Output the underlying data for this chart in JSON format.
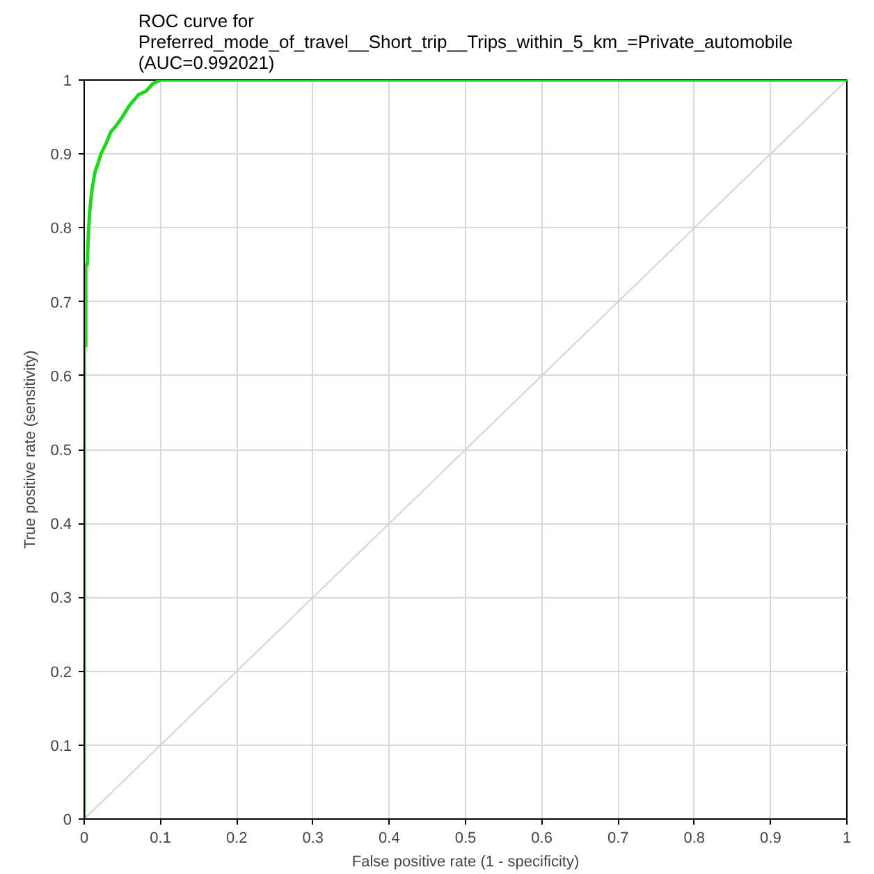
{
  "chart_data": {
    "type": "line",
    "title": "ROC curve for\nPreferred_mode_of_travel__Short_trip__Trips_within_5_km_=Private_automobile\n(AUC=0.992021)",
    "xlabel": "False positive rate (1 - specificity)",
    "ylabel": "True positive rate (sensitivity)",
    "xlim": [
      0,
      1
    ],
    "ylim": [
      0,
      1
    ],
    "xticks": [
      0,
      0.1,
      0.2,
      0.3,
      0.4,
      0.5,
      0.6,
      0.7,
      0.8,
      0.9,
      1
    ],
    "yticks": [
      0,
      0.1,
      0.2,
      0.3,
      0.4,
      0.5,
      0.6,
      0.7,
      0.8,
      0.9,
      1
    ],
    "grid": true,
    "series": [
      {
        "color": "#d3d3d3",
        "x": [
          0,
          1
        ],
        "values": [
          0,
          1
        ]
      },
      {
        "color": "#1ed81e",
        "x": [
          0,
          0,
          0.002,
          0.002,
          0.004,
          0.005,
          0.007,
          0.01,
          0.014,
          0.019,
          0.022,
          0.029,
          0.035,
          0.041,
          0.05,
          0.059,
          0.071,
          0.081,
          0.09,
          0.1,
          1
        ],
        "values": [
          0,
          0.64,
          0.64,
          0.75,
          0.75,
          0.78,
          0.82,
          0.85,
          0.875,
          0.89,
          0.9,
          0.915,
          0.93,
          0.937,
          0.95,
          0.965,
          0.98,
          0.985,
          0.995,
          1,
          1
        ]
      }
    ]
  }
}
